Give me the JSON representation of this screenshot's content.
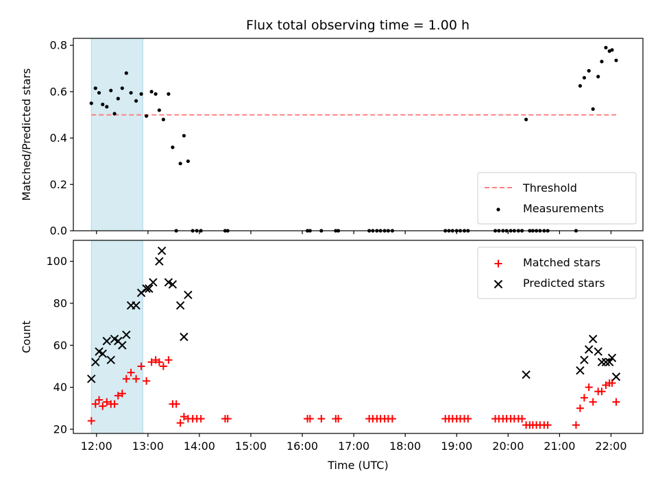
{
  "figure_title": "Flux total observing time = 1.00 h",
  "chart_data": [
    {
      "type": "scatter",
      "panel": "top",
      "ylabel": "Matched/Predicted stars",
      "xlabel": "",
      "xlim": [
        11.55,
        22.62
      ],
      "ylim": [
        0,
        0.83
      ],
      "yticks": [
        0.0,
        0.2,
        0.4,
        0.6,
        0.8
      ],
      "ytick_labels": [
        "0.0",
        "0.2",
        "0.4",
        "0.6",
        "0.8"
      ],
      "shaded_x_range": [
        11.9,
        12.9
      ],
      "threshold": {
        "name": "Threshold",
        "y": 0.5,
        "x": [
          11.9,
          22.1
        ],
        "color": "#ff8080"
      },
      "legend_position": "lower-right",
      "series": [
        {
          "name": "Measurements",
          "marker": "dot",
          "color": "#000000",
          "x": [
            11.9,
            11.98,
            12.05,
            12.12,
            12.2,
            12.28,
            12.35,
            12.42,
            12.5,
            12.58,
            12.67,
            12.77,
            12.87,
            12.97,
            13.07,
            13.15,
            13.22,
            13.3,
            13.4,
            13.48,
            13.55,
            13.63,
            13.7,
            13.78,
            13.87,
            13.95,
            14.03,
            14.5,
            14.55,
            16.1,
            16.15,
            16.37,
            16.65,
            16.7,
            17.3,
            17.37,
            17.45,
            17.52,
            17.6,
            17.67,
            17.75,
            18.78,
            18.85,
            18.92,
            19.0,
            19.07,
            19.15,
            19.22,
            19.75,
            19.82,
            19.9,
            19.97,
            20.05,
            20.12,
            20.2,
            20.27,
            20.35,
            20.42,
            20.48,
            20.55,
            20.62,
            20.7,
            20.77,
            21.32,
            21.4,
            21.48,
            21.57,
            21.65,
            21.75,
            21.82,
            21.9,
            21.97,
            22.02,
            22.1
          ],
          "y": [
            0.55,
            0.615,
            0.595,
            0.545,
            0.535,
            0.605,
            0.505,
            0.57,
            0.615,
            0.68,
            0.595,
            0.56,
            0.59,
            0.495,
            0.6,
            0.59,
            0.52,
            0.48,
            0.59,
            0.36,
            0.0,
            0.29,
            0.41,
            0.3,
            0.0,
            0.0,
            0.0,
            0.0,
            0.0,
            0.0,
            0.0,
            0.0,
            0.0,
            0.0,
            0.0,
            0.0,
            0.0,
            0.0,
            0.0,
            0.0,
            0.0,
            0.0,
            0.0,
            0.0,
            0.0,
            0.0,
            0.0,
            0.0,
            0.0,
            0.0,
            0.0,
            0.0,
            0.0,
            0.0,
            0.0,
            0.0,
            0.48,
            0.0,
            0.0,
            0.0,
            0.0,
            0.0,
            0.0,
            0.0,
            0.625,
            0.66,
            0.69,
            0.525,
            0.665,
            0.73,
            0.79,
            0.775,
            0.78,
            0.735
          ]
        }
      ]
    },
    {
      "type": "scatter",
      "panel": "bottom",
      "ylabel": "Count",
      "xlabel": "Time (UTC)",
      "xlim": [
        11.55,
        22.62
      ],
      "ylim": [
        18,
        110
      ],
      "yticks": [
        20,
        40,
        60,
        80,
        100
      ],
      "ytick_labels": [
        "20",
        "40",
        "60",
        "80",
        "100"
      ],
      "xticks": [
        12,
        13,
        14,
        15,
        16,
        17,
        18,
        19,
        20,
        21,
        22
      ],
      "xtick_labels": [
        "12:00",
        "13:00",
        "14:00",
        "15:00",
        "16:00",
        "17:00",
        "18:00",
        "19:00",
        "20:00",
        "21:00",
        "22:00"
      ],
      "shaded_x_range": [
        11.9,
        12.9
      ],
      "legend_position": "upper-right",
      "series": [
        {
          "name": "Matched stars",
          "marker": "plus",
          "color": "#ff0000",
          "x": [
            11.9,
            11.98,
            12.05,
            12.12,
            12.2,
            12.28,
            12.35,
            12.42,
            12.5,
            12.58,
            12.67,
            12.77,
            12.87,
            12.97,
            13.07,
            13.15,
            13.22,
            13.3,
            13.4,
            13.48,
            13.55,
            13.63,
            13.7,
            13.78,
            13.87,
            13.95,
            14.03,
            14.5,
            14.55,
            16.1,
            16.15,
            16.37,
            16.65,
            16.7,
            17.3,
            17.37,
            17.45,
            17.52,
            17.6,
            17.67,
            17.75,
            18.78,
            18.85,
            18.92,
            19.0,
            19.07,
            19.15,
            19.22,
            19.75,
            19.82,
            19.9,
            19.97,
            20.05,
            20.12,
            20.2,
            20.27,
            20.35,
            20.42,
            20.48,
            20.55,
            20.62,
            20.7,
            20.77,
            21.32,
            21.4,
            21.48,
            21.57,
            21.65,
            21.75,
            21.82,
            21.9,
            21.97,
            22.02,
            22.1
          ],
          "y": [
            24,
            32,
            34,
            31,
            33,
            32,
            32,
            36,
            37,
            44,
            47,
            44,
            50,
            43,
            52,
            53,
            52,
            50,
            53,
            32,
            32,
            23,
            26,
            25,
            25,
            25,
            25,
            25,
            25,
            25,
            25,
            25,
            25,
            25,
            25,
            25,
            25,
            25,
            25,
            25,
            25,
            25,
            25,
            25,
            25,
            25,
            25,
            25,
            25,
            25,
            25,
            25,
            25,
            25,
            25,
            25,
            22,
            22,
            22,
            22,
            22,
            22,
            22,
            22,
            30,
            35,
            40,
            33,
            38,
            38,
            41,
            42,
            42,
            33
          ]
        },
        {
          "name": "Predicted stars",
          "marker": "x",
          "color": "#000000",
          "x": [
            11.9,
            11.98,
            12.05,
            12.12,
            12.2,
            12.28,
            12.35,
            12.42,
            12.5,
            12.58,
            12.67,
            12.77,
            12.87,
            12.97,
            13.02,
            13.1,
            13.22,
            13.27,
            13.4,
            13.48,
            13.63,
            13.7,
            13.78,
            20.35,
            21.4,
            21.48,
            21.57,
            21.65,
            21.75,
            21.82,
            21.9,
            21.97,
            22.02,
            22.1
          ],
          "y": [
            44,
            52,
            57,
            56,
            62,
            53,
            63,
            62,
            60,
            65,
            79,
            79,
            85,
            87,
            87,
            90,
            100,
            105,
            90,
            89,
            79,
            64,
            84,
            46,
            48,
            53,
            58,
            63,
            57,
            52,
            52,
            52,
            54,
            45
          ]
        }
      ]
    }
  ]
}
